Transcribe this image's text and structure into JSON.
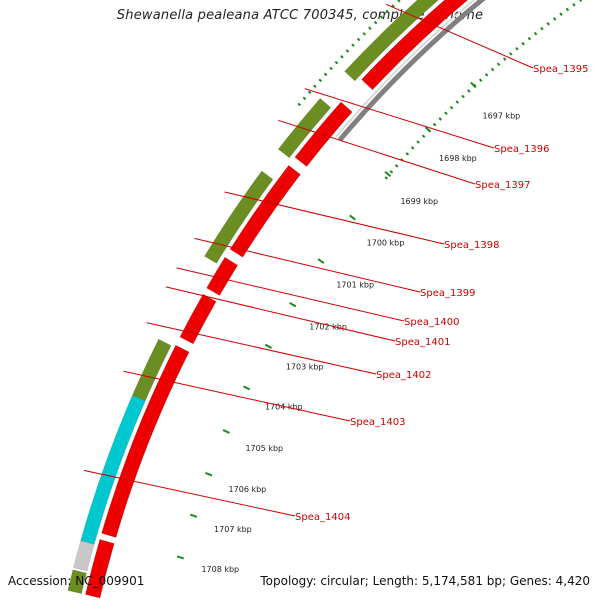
{
  "title": "Shewanella pealeana ATCC 700345, complete genome",
  "accession_text": "Accession: NC_009901",
  "topology_text": "Topology: circular; Length: 5,174,581 bp; Genes: 4,420",
  "kbp_ticks": [
    {
      "label": "1697 kbp"
    },
    {
      "label": "1698 kbp"
    },
    {
      "label": "1699 kbp"
    },
    {
      "label": "1700 kbp"
    },
    {
      "label": "1701 kbp"
    },
    {
      "label": "1702 kbp"
    },
    {
      "label": "1703 kbp"
    },
    {
      "label": "1704 kbp"
    },
    {
      "label": "1705 kbp"
    },
    {
      "label": "1706 kbp"
    },
    {
      "label": "1707 kbp"
    },
    {
      "label": "1708 kbp"
    }
  ],
  "gene_labels": [
    "Spea_1395",
    "Spea_1396",
    "Spea_1397",
    "Spea_1398",
    "Spea_1399",
    "Spea_1400",
    "Spea_1401",
    "Spea_1402",
    "Spea_1403",
    "Spea_1404"
  ],
  "colors": {
    "cds": "#ee0000",
    "olive": "#6b8e23",
    "cyan": "#00c8d0",
    "backbone": "#808080",
    "tick_green": "#1a8a1a",
    "label_red": "#cc0000"
  }
}
